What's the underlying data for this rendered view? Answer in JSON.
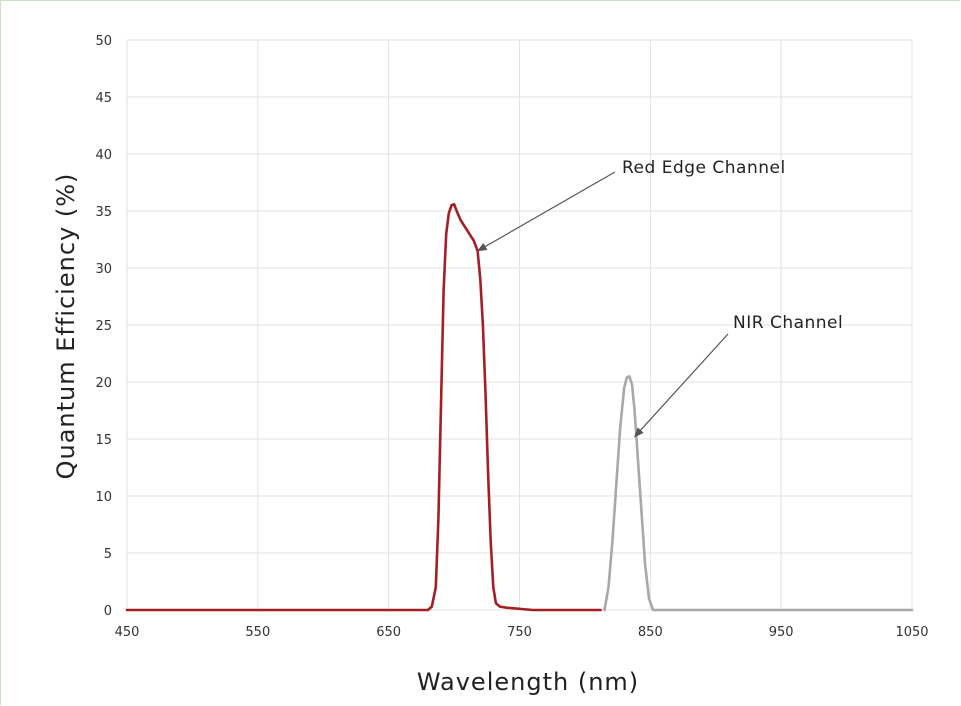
{
  "chart_data": {
    "type": "line",
    "title": "",
    "xlabel": "Wavelength (nm)",
    "ylabel": "Quantum Efficiency (%)",
    "xlim": [
      450,
      1050
    ],
    "ylim": [
      0,
      50
    ],
    "x_ticks": [
      450,
      550,
      650,
      750,
      850,
      950,
      1050
    ],
    "y_ticks": [
      0,
      5,
      10,
      15,
      20,
      25,
      30,
      35,
      40,
      45,
      50
    ],
    "grid": true,
    "series": [
      {
        "color": "#a31f24",
        "points": [
          [
            450,
            0
          ],
          [
            680,
            0
          ],
          [
            683,
            0.3
          ],
          [
            686,
            2
          ],
          [
            688,
            8
          ],
          [
            690,
            18
          ],
          [
            692,
            28
          ],
          [
            694,
            33
          ],
          [
            696,
            34.8
          ],
          [
            698,
            35.5
          ],
          [
            700,
            35.6
          ],
          [
            702,
            35
          ],
          [
            705,
            34.2
          ],
          [
            710,
            33.3
          ],
          [
            715,
            32.4
          ],
          [
            718,
            31.5
          ],
          [
            720,
            29
          ],
          [
            722,
            25
          ],
          [
            724,
            19
          ],
          [
            726,
            12
          ],
          [
            728,
            6
          ],
          [
            730,
            2
          ],
          [
            732,
            0.6
          ],
          [
            735,
            0.3
          ],
          [
            740,
            0.2
          ],
          [
            760,
            0
          ],
          [
            812,
            0
          ]
        ]
      },
      {
        "color": "#a8a8a8",
        "points": [
          [
            815,
            0
          ],
          [
            818,
            2
          ],
          [
            821,
            6
          ],
          [
            824,
            11
          ],
          [
            827,
            16
          ],
          [
            830,
            19.5
          ],
          [
            832,
            20.4
          ],
          [
            834,
            20.5
          ],
          [
            836,
            19.8
          ],
          [
            838,
            17.5
          ],
          [
            840,
            14
          ],
          [
            843,
            9
          ],
          [
            846,
            4
          ],
          [
            849,
            1
          ],
          [
            852,
            0
          ],
          [
            1050,
            0
          ]
        ]
      }
    ],
    "annotations": [
      {
        "text": "Red Edge Channel",
        "target": [
          718,
          31.5
        ]
      },
      {
        "text": "NIR Channel",
        "target": [
          838,
          15.2
        ]
      }
    ]
  }
}
